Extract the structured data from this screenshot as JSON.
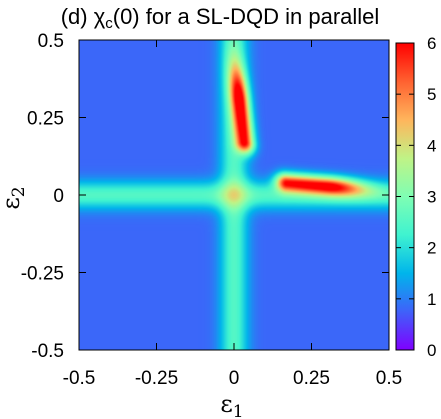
{
  "chart_data": {
    "type": "heatmap",
    "title": "(d) χ_c(0) for a SL-DQD in parallel",
    "title_parts": {
      "prefix": "(d) ",
      "symbol": "χ",
      "subscript": "c",
      "suffix": "(0) for a SL-DQD in parallel"
    },
    "xlabel": {
      "symbol": "ε",
      "subscript": "1"
    },
    "ylabel": {
      "symbol": "ε",
      "subscript": "2"
    },
    "xlim": [
      -0.5,
      0.5
    ],
    "ylim": [
      -0.5,
      0.5
    ],
    "x_ticks": [
      "-0.5",
      "-0.25",
      "0",
      "0.25",
      "0.5"
    ],
    "y_ticks": [
      "0.5",
      "0.25",
      "0",
      "-0.25",
      "-0.5"
    ],
    "x_tick_values": [
      -0.5,
      -0.25,
      0,
      0.25,
      0.5
    ],
    "y_tick_values": [
      0.5,
      0.25,
      0,
      -0.25,
      -0.5
    ],
    "colorbar": {
      "range": [
        0,
        6
      ],
      "ticks": [
        "6",
        "5",
        "4",
        "3",
        "2",
        "1",
        "0"
      ],
      "tick_values": [
        6,
        5,
        4,
        3,
        2,
        1,
        0
      ],
      "colors": [
        "#7f00ff",
        "#3f61fa",
        "#00b5eb",
        "#3ff3d0",
        "#7ffeb3",
        "#c0f386",
        "#ffb55c",
        "#ff6130",
        "#ff0000"
      ]
    },
    "features": [
      {
        "name": "vertical-ridge",
        "x": 0.02,
        "y_range": [
          0.17,
          0.45
        ],
        "peak": 6
      },
      {
        "name": "horizontal-ridge",
        "y": 0.03,
        "x_range": [
          0.17,
          0.45
        ],
        "peak": 6
      },
      {
        "name": "vertical-band",
        "x": 0.0,
        "value": 2.5
      },
      {
        "name": "horizontal-band",
        "y": 0.0,
        "value": 2.5
      }
    ],
    "background_value": 0.8,
    "grid": false,
    "legend": "none"
  }
}
